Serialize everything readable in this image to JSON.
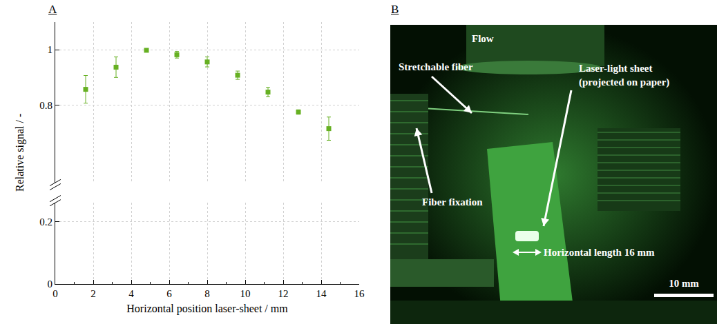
{
  "panel_labels": {
    "a": "A",
    "b": "B"
  },
  "chart_data": {
    "type": "scatter",
    "x_label": "Horizontal position laser-sheet / mm",
    "y_label": "Relative signal / -",
    "x": [
      1.6,
      3.2,
      4.8,
      6.4,
      8.0,
      9.6,
      11.2,
      12.8,
      14.4
    ],
    "series": [
      {
        "name": "Relative signal",
        "color": "#66b022",
        "marker": "square",
        "axis": "y2",
        "values": [
          0.857,
          0.937,
          0.998,
          0.982,
          0.956,
          0.908,
          0.847,
          0.775,
          0.715
        ],
        "errors": [
          0.05,
          0.037,
          0.004,
          0.012,
          0.018,
          0.015,
          0.017,
          0.008,
          0.042
        ]
      }
    ],
    "xlim": [
      0,
      16
    ],
    "xticks": [
      0,
      2,
      4,
      6,
      8,
      10,
      12,
      14,
      16
    ],
    "ylim": [
      0,
      0.26
    ],
    "yticks": [
      0,
      0.2
    ],
    "y2lim": [
      0.52,
      1.1
    ],
    "y2ticks": [
      0.8,
      1
    ],
    "grid": true
  },
  "photo": {
    "labels": {
      "flow": "Flow",
      "fiber": "Stretchable fiber",
      "sheet_line1": "Laser-light sheet",
      "sheet_line2": "(projected on paper)",
      "fixation": "Fiber fixation",
      "length": "Horizontal length 16 mm"
    },
    "scale_bar": "10 mm"
  }
}
